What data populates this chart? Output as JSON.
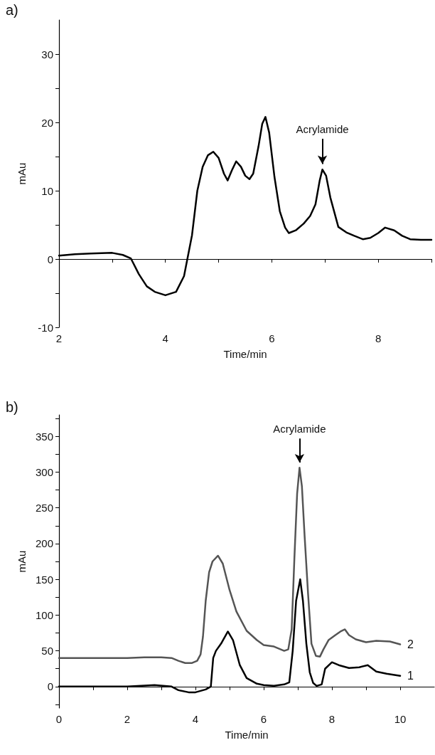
{
  "chart_data": [
    {
      "type": "line",
      "title": "a)",
      "xlabel": "Time/min",
      "ylabel": "mAu",
      "xlim": [
        2,
        9
      ],
      "ylim": [
        -10,
        35
      ],
      "xticks": [
        2,
        {
          "value": 3,
          "label": null
        },
        4,
        {
          "value": 5,
          "label": null
        },
        6,
        {
          "value": 7,
          "label": null
        },
        8,
        {
          "value": 9,
          "label": null
        }
      ],
      "yticks": [
        -10,
        {
          "value": -5,
          "label": null
        },
        0,
        {
          "value": 5,
          "label": null
        },
        10,
        {
          "value": 15,
          "label": null
        },
        20,
        {
          "value": 25,
          "label": null
        },
        30
      ],
      "marker": "none",
      "line_style": "solid",
      "annotations": [
        {
          "text": "Acrylamide",
          "x": 6.95,
          "y": 13.1
        }
      ],
      "series": [
        {
          "color": "#000000",
          "x": [
            2,
            2.3,
            2.6,
            3,
            3.2,
            3.35,
            3.5,
            3.65,
            3.8,
            4,
            4.2,
            4.35,
            4.5,
            4.6,
            4.7,
            4.8,
            4.9,
            5,
            5.1,
            5.17,
            5.25,
            5.33,
            5.42,
            5.5,
            5.58,
            5.65,
            5.75,
            5.82,
            5.88,
            5.95,
            6.05,
            6.15,
            6.25,
            6.32,
            6.45,
            6.6,
            6.72,
            6.82,
            6.9,
            6.95,
            7.02,
            7.1,
            7.25,
            7.4,
            7.55,
            7.71,
            7.85,
            8,
            8.13,
            8.3,
            8.45,
            8.6,
            8.8,
            9
          ],
          "values": [
            0.5,
            0.7,
            0.8,
            0.9,
            0.6,
            0.1,
            -2.2,
            -4,
            -4.8,
            -5.3,
            -4.8,
            -2.5,
            3.5,
            10,
            13.5,
            15.2,
            15.7,
            14.8,
            12.5,
            11.5,
            13,
            14.3,
            13.5,
            12.2,
            11.7,
            12.5,
            16.5,
            19.8,
            20.8,
            18.5,
            12,
            7,
            4.6,
            3.8,
            4.2,
            5.2,
            6.3,
            8,
            11.5,
            13.1,
            12.2,
            9,
            4.7,
            3.9,
            3.4,
            2.9,
            3.1,
            3.8,
            4.6,
            4.2,
            3.4,
            2.9,
            2.8,
            2.8
          ]
        }
      ]
    },
    {
      "type": "line",
      "title": "b)",
      "xlabel": "Time/min",
      "ylabel": "mAu",
      "xlim": [
        0,
        11
      ],
      "ylim": [
        -30,
        380
      ],
      "xticks": [
        0,
        {
          "value": 1,
          "label": null
        },
        2,
        {
          "value": 3,
          "label": null
        },
        4,
        {
          "value": 5,
          "label": null
        },
        6,
        {
          "value": 7,
          "label": null
        },
        8,
        {
          "value": 9,
          "label": null
        },
        10
      ],
      "yticks": [
        {
          "value": -25,
          "label": null
        },
        0,
        {
          "value": 25,
          "label": null
        },
        50,
        {
          "value": 75,
          "label": null
        },
        100,
        {
          "value": 125,
          "label": null
        },
        150,
        {
          "value": 175,
          "label": null
        },
        200,
        {
          "value": 225,
          "label": null
        },
        250,
        {
          "value": 275,
          "label": null
        },
        300,
        {
          "value": 325,
          "label": null
        },
        350,
        {
          "value": 375,
          "label": null
        }
      ],
      "marker": "none",
      "line_style": "solid",
      "annotations": [
        {
          "text": "Acrylamide",
          "x": 7.05,
          "y": 306
        }
      ],
      "series": [
        {
          "name": "2",
          "color": "#555555",
          "x": [
            0,
            1,
            2,
            2.5,
            3,
            3.3,
            3.5,
            3.7,
            3.9,
            4.05,
            4.15,
            4.22,
            4.3,
            4.4,
            4.5,
            4.66,
            4.8,
            5,
            5.2,
            5.5,
            5.8,
            6,
            6.3,
            6.6,
            6.72,
            6.82,
            6.9,
            6.98,
            7.05,
            7.12,
            7.2,
            7.3,
            7.4,
            7.53,
            7.65,
            7.75,
            7.9,
            8.1,
            8.25,
            8.38,
            8.5,
            8.7,
            9,
            9.3,
            9.7,
            10
          ],
          "values": [
            40,
            40,
            40,
            41,
            41,
            40,
            36,
            33,
            33,
            36,
            45,
            70,
            120,
            160,
            175,
            183,
            172,
            135,
            105,
            78,
            65,
            58,
            56,
            50,
            52,
            80,
            180,
            270,
            306,
            280,
            210,
            130,
            60,
            43,
            42,
            52,
            65,
            72,
            77,
            80,
            72,
            66,
            62,
            64,
            63,
            59
          ]
        },
        {
          "name": "1",
          "color": "#000000",
          "x": [
            0,
            1,
            2,
            2.4,
            2.8,
            3.3,
            3.5,
            3.8,
            4,
            4.3,
            4.45,
            4.52,
            4.6,
            4.75,
            4.95,
            5.1,
            5.3,
            5.5,
            5.8,
            6,
            6.3,
            6.6,
            6.75,
            6.85,
            6.95,
            7.07,
            7.15,
            7.25,
            7.35,
            7.45,
            7.55,
            7.7,
            7.8,
            8,
            8.2,
            8.5,
            8.8,
            9.05,
            9.3,
            9.6,
            10
          ],
          "values": [
            0,
            0,
            0,
            1,
            2,
            0,
            -5,
            -8,
            -8,
            -4,
            0,
            40,
            50,
            60,
            77,
            65,
            30,
            12,
            4,
            2,
            1,
            3,
            6,
            50,
            120,
            150,
            120,
            60,
            20,
            5,
            1,
            3,
            25,
            34,
            30,
            26,
            27,
            30,
            21,
            18,
            15
          ]
        }
      ]
    }
  ]
}
